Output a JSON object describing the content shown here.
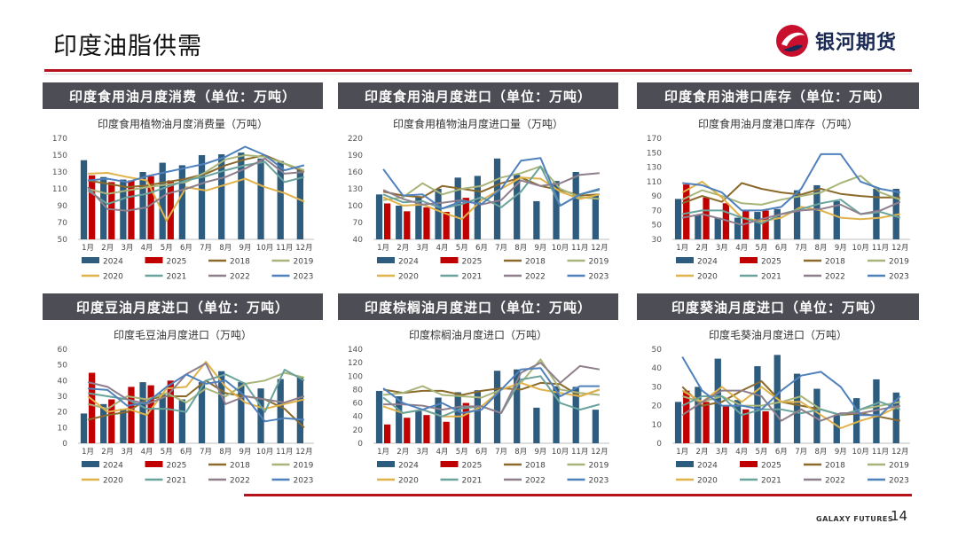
{
  "page": {
    "title": "印度油脂供需",
    "logo_text": "银河期货",
    "footer_brand": "GALAXY FUTURES",
    "page_number": "14"
  },
  "colors": {
    "2024": "#2e5c7e",
    "2025": "#c00000",
    "2018": "#8b6a2b",
    "2019": "#a8b57a",
    "2020": "#e0b24a",
    "2021": "#6aa39c",
    "2022": "#8f7f8c",
    "2023": "#4f81bd"
  },
  "legend_series": [
    "2024",
    "2025",
    "2018",
    "2019",
    "2020",
    "2021",
    "2022",
    "2023"
  ],
  "panels": [
    {
      "header": "印度食用油月度消费（单位：万吨）"
    },
    {
      "header": "印度食用油月度进口（单位：万吨）"
    },
    {
      "header": "印度食用油港口库存（单位：万吨）"
    },
    {
      "header": "印度豆油月度进口（单位：万吨）"
    },
    {
      "header": "印度棕榈油月度进口（单位：万吨）"
    },
    {
      "header": "印度葵油月度进口（单位：万吨）"
    }
  ],
  "chart_data": [
    {
      "type": "bar",
      "title": "印度食用植物油月度消费量（万吨）",
      "categories": [
        "1月",
        "2月",
        "3月",
        "4月",
        "5月",
        "6月",
        "7月",
        "8月",
        "9月",
        "10月",
        "11月",
        "12月"
      ],
      "ylim": [
        50,
        170
      ],
      "yticks": [
        50,
        70,
        90,
        110,
        130,
        150,
        170
      ],
      "series": [
        {
          "name": "2024",
          "kind": "bar",
          "values": [
            144,
            124,
            121,
            130,
            141,
            138,
            150,
            151,
            153,
            146,
            143,
            133
          ]
        },
        {
          "name": "2025",
          "kind": "bar",
          "values": [
            126,
            118,
            120,
            125,
            120,
            null,
            null,
            null,
            null,
            null,
            null,
            null
          ]
        },
        {
          "name": "2018",
          "kind": "line",
          "values": [
            120,
            116,
            112,
            114,
            118,
            122,
            128,
            138,
            145,
            150,
            140,
            130
          ]
        },
        {
          "name": "2019",
          "kind": "line",
          "values": [
            110,
            104,
            108,
            112,
            115,
            118,
            130,
            145,
            150,
            148,
            140,
            132
          ]
        },
        {
          "name": "2020",
          "kind": "line",
          "values": [
            128,
            129,
            124,
            120,
            72,
            112,
            108,
            115,
            122,
            112,
            105,
            95
          ]
        },
        {
          "name": "2021",
          "kind": "line",
          "values": [
            108,
            92,
            100,
            104,
            112,
            120,
            125,
            132,
            138,
            142,
            118,
            124
          ]
        },
        {
          "name": "2022",
          "kind": "line",
          "values": [
            112,
            86,
            84,
            88,
            104,
            110,
            118,
            124,
            134,
            146,
            128,
            130
          ]
        },
        {
          "name": "2023",
          "kind": "line",
          "values": [
            120,
            122,
            118,
            125,
            130,
            135,
            140,
            148,
            160,
            150,
            132,
            138
          ]
        }
      ]
    },
    {
      "type": "bar",
      "title": "印度食用植物油月度进口量（万吨）",
      "categories": [
        "1月",
        "2月",
        "3月",
        "4月",
        "5月",
        "6月",
        "7月",
        "8月",
        "9月",
        "10月",
        "11月",
        "12月"
      ],
      "ylim": [
        40,
        220
      ],
      "yticks": [
        40,
        70,
        100,
        130,
        160,
        190,
        220
      ],
      "series": [
        {
          "name": "2024",
          "kind": "bar",
          "values": [
            120,
            100,
            115,
            130,
            150,
            153,
            184,
            155,
            108,
            144,
            160,
            120
          ]
        },
        {
          "name": "2025",
          "kind": "bar",
          "values": [
            104,
            90,
            97,
            89,
            114,
            null,
            null,
            null,
            null,
            null,
            null,
            null
          ]
        },
        {
          "name": "2018",
          "kind": "line",
          "values": [
            125,
            118,
            115,
            135,
            130,
            125,
            140,
            150,
            135,
            128,
            118,
            120
          ]
        },
        {
          "name": "2019",
          "kind": "line",
          "values": [
            110,
            115,
            140,
            120,
            130,
            135,
            150,
            158,
            170,
            130,
            115,
            112
          ]
        },
        {
          "name": "2020",
          "kind": "line",
          "values": [
            115,
            100,
            102,
            88,
            76,
            110,
            130,
            150,
            148,
            125,
            112,
            120
          ]
        },
        {
          "name": "2021",
          "kind": "line",
          "values": [
            120,
            106,
            108,
            95,
            103,
            115,
            97,
            125,
            170,
            100,
            120,
            128
          ]
        },
        {
          "name": "2022",
          "kind": "line",
          "values": [
            128,
            112,
            102,
            105,
            110,
            102,
            110,
            145,
            135,
            140,
            155,
            158
          ]
        },
        {
          "name": "2023",
          "kind": "line",
          "values": [
            165,
            118,
            120,
            95,
            108,
            103,
            130,
            180,
            185,
            100,
            120,
            130
          ]
        }
      ]
    },
    {
      "type": "bar",
      "title": "印度食用油月度港口库存（万吨）",
      "categories": [
        "1月",
        "2月",
        "3月",
        "4月",
        "5月",
        "6月",
        "7月",
        "8月",
        "9月",
        "10月",
        "11月",
        "12月"
      ],
      "ylim": [
        30,
        170
      ],
      "yticks": [
        30,
        50,
        70,
        90,
        110,
        130,
        150,
        170
      ],
      "series": [
        {
          "name": "2024",
          "kind": "bar",
          "values": [
            86,
            64,
            60,
            60,
            68,
            72,
            98,
            105,
            83,
            null,
            100,
            100
          ]
        },
        {
          "name": "2025",
          "kind": "bar",
          "values": [
            106,
            88,
            80,
            70,
            70,
            null,
            null,
            null,
            null,
            null,
            null,
            null
          ]
        },
        {
          "name": "2018",
          "kind": "line",
          "values": [
            80,
            90,
            82,
            108,
            100,
            95,
            92,
            100,
            93,
            90,
            88,
            88
          ]
        },
        {
          "name": "2019",
          "kind": "line",
          "values": [
            85,
            98,
            90,
            80,
            78,
            85,
            90,
            95,
            108,
            118,
            95,
            85
          ]
        },
        {
          "name": "2020",
          "kind": "line",
          "values": [
            95,
            110,
            88,
            60,
            55,
            60,
            75,
            70,
            60,
            58,
            60,
            65
          ]
        },
        {
          "name": "2021",
          "kind": "line",
          "values": [
            65,
            70,
            70,
            60,
            52,
            65,
            72,
            80,
            85,
            65,
            68,
            60
          ]
        },
        {
          "name": "2022",
          "kind": "line",
          "values": [
            60,
            65,
            58,
            50,
            58,
            65,
            70,
            72,
            78,
            65,
            70,
            82
          ]
        },
        {
          "name": "2023",
          "kind": "line",
          "values": [
            108,
            105,
            95,
            70,
            70,
            75,
            100,
            148,
            148,
            110,
            100,
            95
          ]
        }
      ]
    },
    {
      "type": "bar",
      "title": "印度毛豆油月度进口（万吨）",
      "categories": [
        "1月",
        "2月",
        "3月",
        "4月",
        "5月",
        "6月",
        "7月",
        "8月",
        "9月",
        "10月",
        "11月",
        "12月"
      ],
      "ylim": [
        0,
        60
      ],
      "yticks": [
        0,
        10,
        20,
        30,
        40,
        50,
        60
      ],
      "series": [
        {
          "name": "2024",
          "kind": "bar",
          "values": [
            19,
            25,
            22,
            39,
            32,
            28,
            39,
            46,
            39,
            35,
            41,
            42
          ]
        },
        {
          "name": "2025",
          "kind": "bar",
          "values": [
            45,
            28,
            36,
            37,
            40,
            null,
            null,
            null,
            null,
            null,
            null,
            null
          ]
        },
        {
          "name": "2018",
          "kind": "line",
          "values": [
            15,
            18,
            20,
            28,
            30,
            30,
            40,
            32,
            30,
            28,
            22,
            10
          ]
        },
        {
          "name": "2019",
          "kind": "line",
          "values": [
            25,
            22,
            30,
            28,
            32,
            26,
            35,
            30,
            38,
            40,
            45,
            42
          ]
        },
        {
          "name": "2020",
          "kind": "line",
          "values": [
            30,
            20,
            22,
            18,
            35,
            36,
            52,
            36,
            26,
            22,
            25,
            28
          ]
        },
        {
          "name": "2021",
          "kind": "line",
          "values": [
            32,
            30,
            28,
            22,
            22,
            20,
            40,
            44,
            38,
            20,
            47,
            40
          ]
        },
        {
          "name": "2022",
          "kind": "line",
          "values": [
            39,
            36,
            28,
            25,
            30,
            44,
            51,
            25,
            30,
            28,
            26,
            30
          ]
        },
        {
          "name": "2023",
          "kind": "line",
          "values": [
            35,
            34,
            24,
            26,
            36,
            44,
            38,
            40,
            30,
            14,
            16,
            15
          ]
        }
      ]
    },
    {
      "type": "bar",
      "title": "印度棕榈油月度进口（万吨）",
      "categories": [
        "1月",
        "2月",
        "3月",
        "4月",
        "5月",
        "6月",
        "7月",
        "8月",
        "9月",
        "10月",
        "11月",
        "12月"
      ],
      "ylim": [
        0,
        140
      ],
      "yticks": [
        0,
        20,
        40,
        60,
        80,
        100,
        120,
        140
      ],
      "series": [
        {
          "name": "2024",
          "kind": "bar",
          "values": [
            78,
            70,
            48,
            68,
            76,
            79,
            108,
            110,
            53,
            85,
            84,
            50
          ]
        },
        {
          "name": "2025",
          "kind": "bar",
          "values": [
            28,
            38,
            42,
            32,
            60,
            null,
            null,
            null,
            null,
            null,
            null,
            null
          ]
        },
        {
          "name": "2018",
          "kind": "line",
          "values": [
            80,
            75,
            78,
            78,
            72,
            78,
            82,
            80,
            90,
            88,
            70,
            80
          ]
        },
        {
          "name": "2019",
          "kind": "line",
          "values": [
            72,
            75,
            85,
            72,
            70,
            68,
            80,
            90,
            125,
            80,
            75,
            72
          ]
        },
        {
          "name": "2020",
          "kind": "line",
          "values": [
            55,
            45,
            50,
            40,
            40,
            55,
            80,
            90,
            80,
            75,
            70,
            80
          ]
        },
        {
          "name": "2021",
          "kind": "line",
          "values": [
            68,
            45,
            50,
            40,
            52,
            55,
            45,
            95,
            100,
            60,
            50,
            58
          ]
        },
        {
          "name": "2022",
          "kind": "line",
          "values": [
            58,
            58,
            56,
            50,
            55,
            55,
            45,
            105,
            120,
            90,
            115,
            110
          ]
        },
        {
          "name": "2023",
          "kind": "line",
          "values": [
            82,
            60,
            50,
            60,
            45,
            50,
            80,
            110,
            112,
            70,
            85,
            85
          ]
        }
      ]
    },
    {
      "type": "bar",
      "title": "印度毛葵油月度进口（万吨）",
      "categories": [
        "1月",
        "2月",
        "3月",
        "4月",
        "5月",
        "6月",
        "7月",
        "8月",
        "9月",
        "10月",
        "11月",
        "12月"
      ],
      "ylim": [
        0,
        50
      ],
      "yticks": [
        0,
        10,
        20,
        30,
        40,
        50
      ],
      "series": [
        {
          "name": "2024",
          "kind": "bar",
          "values": [
            22,
            30,
            45,
            23,
            41,
            47,
            37,
            29,
            15,
            24,
            34,
            27
          ]
        },
        {
          "name": "2025",
          "kind": "bar",
          "values": [
            28,
            22,
            20,
            18,
            17,
            null,
            null,
            null,
            null,
            null,
            null,
            null
          ]
        },
        {
          "name": "2018",
          "kind": "line",
          "values": [
            30,
            20,
            22,
            28,
            33,
            22,
            20,
            18,
            15,
            16,
            14,
            12
          ]
        },
        {
          "name": "2019",
          "kind": "line",
          "values": [
            25,
            22,
            25,
            20,
            20,
            22,
            25,
            18,
            15,
            18,
            20,
            22
          ]
        },
        {
          "name": "2020",
          "kind": "line",
          "values": [
            28,
            22,
            30,
            22,
            30,
            22,
            22,
            15,
            8,
            12,
            15,
            20
          ]
        },
        {
          "name": "2021",
          "kind": "line",
          "values": [
            20,
            25,
            25,
            15,
            18,
            18,
            16,
            18,
            15,
            18,
            22,
            18
          ]
        },
        {
          "name": "2022",
          "kind": "line",
          "values": [
            15,
            22,
            28,
            28,
            25,
            12,
            18,
            12,
            16,
            16,
            18,
            20
          ]
        },
        {
          "name": "2023",
          "kind": "line",
          "values": [
            46,
            28,
            20,
            20,
            18,
            28,
            36,
            38,
            30,
            15,
            15,
            25
          ]
        }
      ]
    }
  ]
}
